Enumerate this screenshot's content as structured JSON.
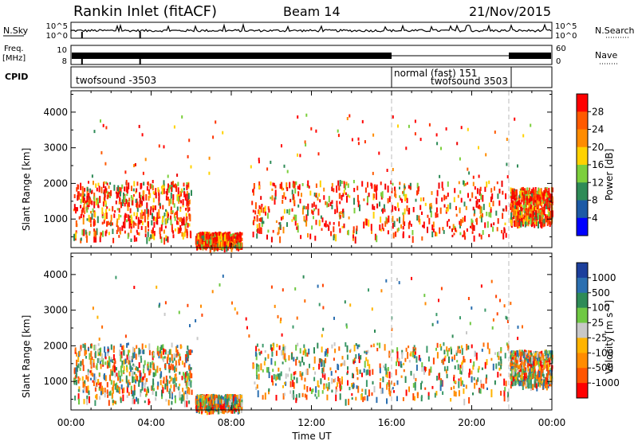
{
  "header": {
    "station": "Rankin Inlet (fitACF)",
    "beam": "Beam 14",
    "date": "21/Nov/2015"
  },
  "strips": {
    "nsky_label": "N.Sky",
    "nsky_ticks": [
      "10^5",
      "10^0"
    ],
    "nsearch_label": "N.Search",
    "nsearch_ticks": [
      "10^5",
      "10^0"
    ],
    "freq_label_1": "Freq.",
    "freq_label_2": "[MHz]",
    "freq_ticks": [
      "10",
      "8"
    ],
    "nave_label": "Nave",
    "nave_ticks": [
      "60",
      "0"
    ],
    "cpid_label": "CPID",
    "cpid_segments": [
      {
        "text": "twofsound -3503"
      },
      {
        "text": "normal (fast) 151"
      },
      {
        "text": "twofsound 3503"
      }
    ]
  },
  "chart_data": [
    {
      "type": "heatmap",
      "parameter": "Power",
      "ylabel": "Slant Range [km]",
      "xlabel": "",
      "x_ticks": [
        "00:00",
        "04:00",
        "08:00",
        "12:00",
        "16:00",
        "20:00",
        "00:00"
      ],
      "y_ticks": [
        1000,
        2000,
        3000,
        4000
      ],
      "ylim": [
        200,
        4600
      ],
      "xlim_hours": [
        0,
        24
      ],
      "colorbar_label": "Power [dB]",
      "colorbar_ticks": [
        "28",
        "24",
        "20",
        "16",
        "12",
        "8",
        "4"
      ],
      "colorbar_colors": [
        "#ff0000",
        "#ff5a00",
        "#ff8c00",
        "#ffd200",
        "#7ccf3c",
        "#2e8b57",
        "#1c5aa6",
        "#0000ff"
      ],
      "scatter_regions": [
        {
          "t_start": 0.1,
          "t_end": 6.0,
          "r_lo": 450,
          "r_hi": 2100,
          "dominant": "red-orange"
        },
        {
          "t_start": 6.2,
          "t_end": 8.5,
          "r_lo": 250,
          "r_hi": 650,
          "dominant": "red"
        },
        {
          "t_start": 9.0,
          "t_end": 21.8,
          "r_lo": 500,
          "r_hi": 2100,
          "dominant": "red"
        },
        {
          "t_start": 21.9,
          "t_end": 24,
          "r_lo": 900,
          "r_hi": 1900,
          "dominant": "red-orange"
        }
      ]
    },
    {
      "type": "heatmap",
      "parameter": "Velocity",
      "ylabel": "Slant Range [km]",
      "xlabel": "Time UT",
      "x_ticks": [
        "00:00",
        "04:00",
        "08:00",
        "12:00",
        "16:00",
        "20:00",
        "00:00"
      ],
      "y_ticks": [
        1000,
        2000,
        3000,
        4000
      ],
      "ylim": [
        200,
        4600
      ],
      "xlim_hours": [
        0,
        24
      ],
      "colorbar_label": "Velocity [m s⁻¹]",
      "colorbar_ticks": [
        "1000",
        "500",
        "100",
        "25",
        "-25",
        "-100",
        "-500",
        "-1000"
      ],
      "colorbar_colors": [
        "#1c3f9c",
        "#2b6fb0",
        "#2e8b57",
        "#6fc843",
        "#c8c8c8",
        "#ffb400",
        "#ff8c00",
        "#ff5500",
        "#ff0000"
      ],
      "scatter_regions": [
        {
          "t_start": 0.1,
          "t_end": 6.0,
          "r_lo": 450,
          "r_hi": 2100,
          "dominant": "orange-green"
        },
        {
          "t_start": 6.2,
          "t_end": 8.5,
          "r_lo": 250,
          "r_hi": 650,
          "dominant": "orange"
        },
        {
          "t_start": 9.0,
          "t_end": 21.8,
          "r_lo": 500,
          "r_hi": 2100,
          "dominant": "orange-green-grey"
        },
        {
          "t_start": 21.9,
          "t_end": 24,
          "r_lo": 900,
          "r_hi": 1900,
          "dominant": "orange-red"
        }
      ]
    }
  ]
}
